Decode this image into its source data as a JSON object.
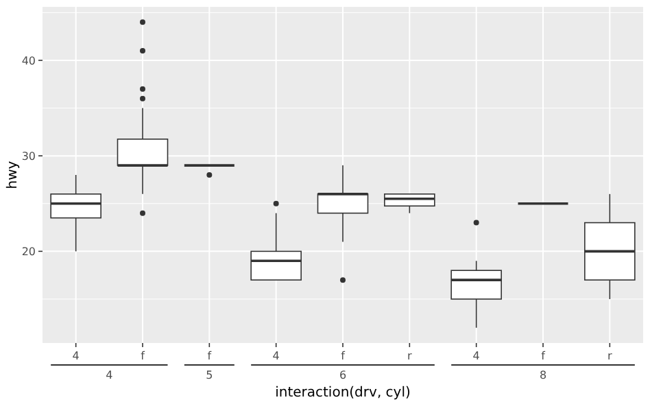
{
  "chart_data": {
    "type": "box",
    "xlabel": "interaction(drv, cyl)",
    "ylabel": "hwy",
    "categories": [
      "4",
      "f",
      "f",
      "4",
      "f",
      "r",
      "4",
      "f",
      "r"
    ],
    "annotations": [
      "4",
      "5",
      "6",
      "8"
    ],
    "boxes": [
      {
        "low": 20,
        "q1": 23.5,
        "median": 25,
        "q3": 26,
        "high": 28
      },
      {
        "low": 26,
        "q1": 29,
        "median": 29,
        "q3": 31.75,
        "high": 35,
        "outliers": [
          44,
          41,
          37,
          36,
          24
        ]
      },
      {
        "low": 29,
        "q1": 29,
        "median": 29,
        "q3": 29,
        "high": 29,
        "outliers": [
          28
        ]
      },
      {
        "low": 17,
        "q1": 17,
        "median": 19,
        "q3": 20,
        "high": 24,
        "outliers": [
          25
        ]
      },
      {
        "low": 21,
        "q1": 24,
        "median": 26,
        "q3": 26,
        "high": 29,
        "outliers": [
          17
        ]
      },
      {
        "low": 24,
        "q1": 24.75,
        "median": 25.5,
        "q3": 26,
        "high": 26
      },
      {
        "low": 12,
        "q1": 15,
        "median": 17,
        "q3": 18,
        "high": 19,
        "outliers": [
          23
        ]
      },
      {
        "low": 25,
        "q1": 25,
        "median": 25,
        "q3": 25,
        "high": 25
      },
      {
        "low": 15,
        "q1": 17,
        "median": 20,
        "q3": 23,
        "high": 26
      }
    ],
    "ylim": [
      10.4,
      45.6
    ],
    "yticks": [
      20,
      30,
      40
    ],
    "grid": true
  }
}
